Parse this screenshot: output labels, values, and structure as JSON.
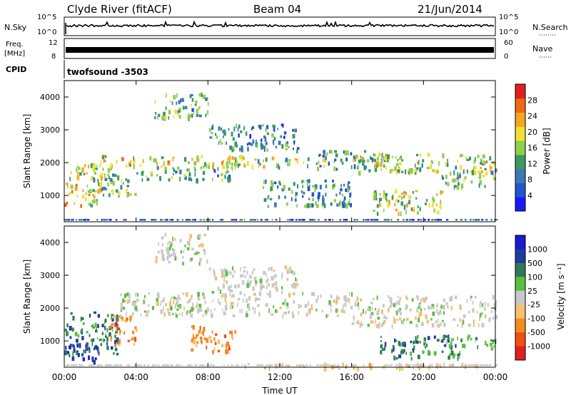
{
  "header": {
    "station": "Clyde River (fitACF)",
    "beam": "Beam 04",
    "date": "21/Jun/2014"
  },
  "top_panel": {
    "nsky_label": "N.Sky",
    "nsky_ticks": [
      "10^5",
      "10^0"
    ],
    "nsearch_label": "N.Search",
    "nsearch_ticks": [
      "10^5",
      "10^0"
    ],
    "freq_label": "Freq.",
    "freq_unit": "[MHz]",
    "freq_ticks": [
      "12",
      "8"
    ],
    "nave_label": "Nave",
    "nave_ticks": [
      "60",
      "0"
    ],
    "cpid_label": "CPID",
    "cpid_value": "twofsound  -3503"
  },
  "chart_data": [
    {
      "type": "heatmap",
      "name": "power",
      "ylabel": "Slant Range [km]",
      "yticks": [
        "1000",
        "2000",
        "3000",
        "4000"
      ],
      "ylim": [
        200,
        4500
      ],
      "xlim_hours": [
        0,
        24
      ],
      "colorbar": {
        "label": "Power [dB]",
        "ticks": [
          "4",
          "8",
          "12",
          "16",
          "20",
          "24",
          "28"
        ],
        "range": [
          0,
          32
        ],
        "colors": [
          "#1a1aff",
          "#2255cc",
          "#3a7ab0",
          "#3a9a60",
          "#8fd04a",
          "#f0e030",
          "#f5a623",
          "#f06a10",
          "#e02020"
        ]
      },
      "bands": [
        {
          "t0": 0.0,
          "t1": 3.0,
          "r0": 1500,
          "r1": 2000,
          "level": 0.55
        },
        {
          "t0": 0.0,
          "t1": 2.0,
          "r0": 700,
          "r1": 1400,
          "level": 0.65
        },
        {
          "t0": 1.5,
          "t1": 4.0,
          "r0": 1000,
          "r1": 1600,
          "level": 0.45
        },
        {
          "t0": 2.0,
          "t1": 10.0,
          "r0": 1900,
          "r1": 2250,
          "level": 0.6
        },
        {
          "t0": 4.0,
          "t1": 9.5,
          "r0": 1500,
          "r1": 1900,
          "level": 0.4
        },
        {
          "t0": 5.0,
          "t1": 8.0,
          "r0": 3400,
          "r1": 4200,
          "level": 0.35
        },
        {
          "t0": 8.0,
          "t1": 13.0,
          "r0": 2400,
          "r1": 3200,
          "level": 0.3
        },
        {
          "t0": 9.0,
          "t1": 14.5,
          "r0": 1900,
          "r1": 2200,
          "level": 0.5
        },
        {
          "t0": 11.0,
          "t1": 16.0,
          "r0": 700,
          "r1": 1500,
          "level": 0.3
        },
        {
          "t0": 14.0,
          "t1": 18.0,
          "r0": 1800,
          "r1": 2400,
          "level": 0.35
        },
        {
          "t0": 16.0,
          "t1": 24.0,
          "r0": 1700,
          "r1": 2300,
          "level": 0.5
        },
        {
          "t0": 17.0,
          "t1": 21.0,
          "r0": 500,
          "r1": 1200,
          "level": 0.55
        },
        {
          "t0": 21.0,
          "t1": 24.0,
          "r0": 1300,
          "r1": 1800,
          "level": 0.45
        }
      ]
    },
    {
      "type": "heatmap",
      "name": "velocity",
      "ylabel": "Slant Range [km]",
      "xlabel": "Time UT",
      "xticks": [
        "00:00",
        "04:00",
        "08:00",
        "12:00",
        "16:00",
        "20:00",
        "00:00"
      ],
      "yticks": [
        "1000",
        "2000",
        "3000",
        "4000"
      ],
      "ylim": [
        200,
        4500
      ],
      "xlim_hours": [
        0,
        24
      ],
      "colorbar": {
        "label": "Velocity  [m s⁻¹]",
        "ticks": [
          "1000",
          "500",
          "100",
          "25",
          "-25",
          "-100",
          "-500",
          "-1000"
        ],
        "colors": [
          "#1a1ad0",
          "#1e3ca0",
          "#2e7a5a",
          "#5ac040",
          "#c8c8c8",
          "#f5c070",
          "#f58a20",
          "#f05010",
          "#e02020"
        ]
      },
      "bands": [
        {
          "t0": 0.0,
          "t1": 3.0,
          "r0": 600,
          "r1": 1900,
          "cls": 2
        },
        {
          "t0": 0.0,
          "t1": 2.0,
          "r0": 400,
          "r1": 900,
          "cls": 1
        },
        {
          "t0": 2.5,
          "t1": 4.0,
          "r0": 900,
          "r1": 1800,
          "cls": 6
        },
        {
          "t0": 3.0,
          "t1": 16.0,
          "r0": 1800,
          "r1": 2500,
          "cls": 4
        },
        {
          "t0": 5.0,
          "t1": 8.0,
          "r0": 3400,
          "r1": 4300,
          "cls": 4
        },
        {
          "t0": 7.0,
          "t1": 9.5,
          "r0": 700,
          "r1": 1500,
          "cls": 6
        },
        {
          "t0": 8.0,
          "t1": 13.0,
          "r0": 2500,
          "r1": 3300,
          "cls": 4
        },
        {
          "t0": 16.0,
          "t1": 24.0,
          "r0": 1500,
          "r1": 2400,
          "cls": 4
        },
        {
          "t0": 17.5,
          "t1": 22.0,
          "r0": 500,
          "r1": 1200,
          "cls": 2
        },
        {
          "t0": 21.0,
          "t1": 24.0,
          "r0": 800,
          "r1": 1200,
          "cls": 3
        },
        {
          "t0": 10.0,
          "t1": 24.0,
          "r0": 200,
          "r1": 350,
          "cls": 5
        }
      ]
    }
  ]
}
